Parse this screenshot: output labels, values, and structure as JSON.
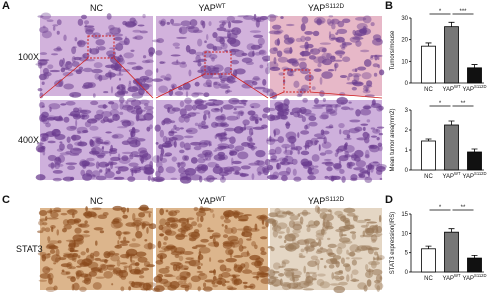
{
  "panels": {
    "letters": [
      "A",
      "B",
      "C",
      "D"
    ],
    "columns": [
      {
        "text": "NC",
        "sup": null
      },
      {
        "text": "YAP",
        "sup": "WT"
      },
      {
        "text": "YAP",
        "sup": "S112D"
      }
    ],
    "rows_a": [
      "100X",
      "400X"
    ],
    "row_c": "STAT3"
  },
  "chart_data": [
    {
      "type": "bar",
      "ylabel": "Tumors/mouse",
      "categories": [
        "NC",
        "YAP",
        "YAP"
      ],
      "category_sups": [
        null,
        "WT",
        "S112D"
      ],
      "values": [
        17,
        26,
        7
      ],
      "errors": [
        1.5,
        2,
        1.5
      ],
      "colors": [
        "#ffffff",
        "#777777",
        "#111111"
      ],
      "ylim": [
        0,
        30
      ],
      "yticks": [
        0,
        10,
        20,
        30
      ],
      "annotations": [
        "*",
        "***"
      ]
    },
    {
      "type": "bar",
      "ylabel": "Mean tumor area(mm2)",
      "categories": [
        "NC",
        "YAP",
        "YAP"
      ],
      "category_sups": [
        null,
        "WT",
        "S112D"
      ],
      "values": [
        1.45,
        2.25,
        0.9
      ],
      "errors": [
        0.1,
        0.2,
        0.15
      ],
      "colors": [
        "#ffffff",
        "#777777",
        "#111111"
      ],
      "ylim": [
        0,
        3
      ],
      "yticks": [
        0,
        1,
        2,
        3
      ],
      "annotations": [
        "*",
        "**"
      ]
    },
    {
      "type": "bar",
      "ylabel": "STAT3 expression(IRS)",
      "categories": [
        "NC",
        "YAP",
        "YAP"
      ],
      "category_sups": [
        null,
        "WT",
        "S112D"
      ],
      "values": [
        6,
        10.3,
        3.6
      ],
      "errors": [
        0.7,
        0.9,
        0.7
      ],
      "colors": [
        "#ffffff",
        "#777777",
        "#111111"
      ],
      "ylim": [
        0,
        15
      ],
      "yticks": [
        0,
        5,
        10,
        15
      ],
      "annotations": [
        "*",
        "**"
      ]
    }
  ]
}
